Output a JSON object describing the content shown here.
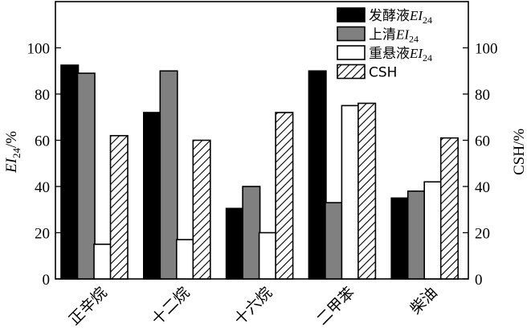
{
  "chart_data": {
    "type": "bar",
    "categories": [
      "正辛烷",
      "十二烷",
      "十六烷",
      "二甲苯",
      "柴油"
    ],
    "series": [
      {
        "name": "发酵液EI24",
        "label_main": "发酵液",
        "label_ital": "EI",
        "label_sub": "24",
        "fill": "solid-black",
        "values": [
          92.5,
          72,
          30.5,
          90,
          35
        ]
      },
      {
        "name": "上清EI24",
        "label_main": "上清",
        "label_ital": "EI",
        "label_sub": "24",
        "fill": "solid-gray",
        "values": [
          89,
          90,
          40,
          33,
          38
        ]
      },
      {
        "name": "重悬液EI24",
        "label_main": "重悬液",
        "label_ital": "EI",
        "label_sub": "24",
        "fill": "white",
        "values": [
          15,
          17,
          20,
          75,
          42
        ]
      },
      {
        "name": "CSH",
        "label_main": "CSH",
        "label_ital": "",
        "label_sub": "",
        "fill": "hatched",
        "values": [
          62,
          60,
          72,
          76,
          61
        ]
      }
    ],
    "y_left": {
      "label_ital": "EI",
      "label_sub": "24",
      "label_rest": "/%",
      "lim": [
        0,
        120
      ],
      "ticks": [
        0,
        20,
        40,
        60,
        80,
        100
      ]
    },
    "y_right": {
      "label": "CSH/%",
      "lim": [
        0,
        120
      ],
      "ticks": [
        0,
        20,
        40,
        60,
        80,
        100
      ]
    },
    "legend": {
      "position": "top-right"
    },
    "colors": {
      "black": "#000000",
      "gray": "#808080",
      "white": "#ffffff"
    }
  }
}
